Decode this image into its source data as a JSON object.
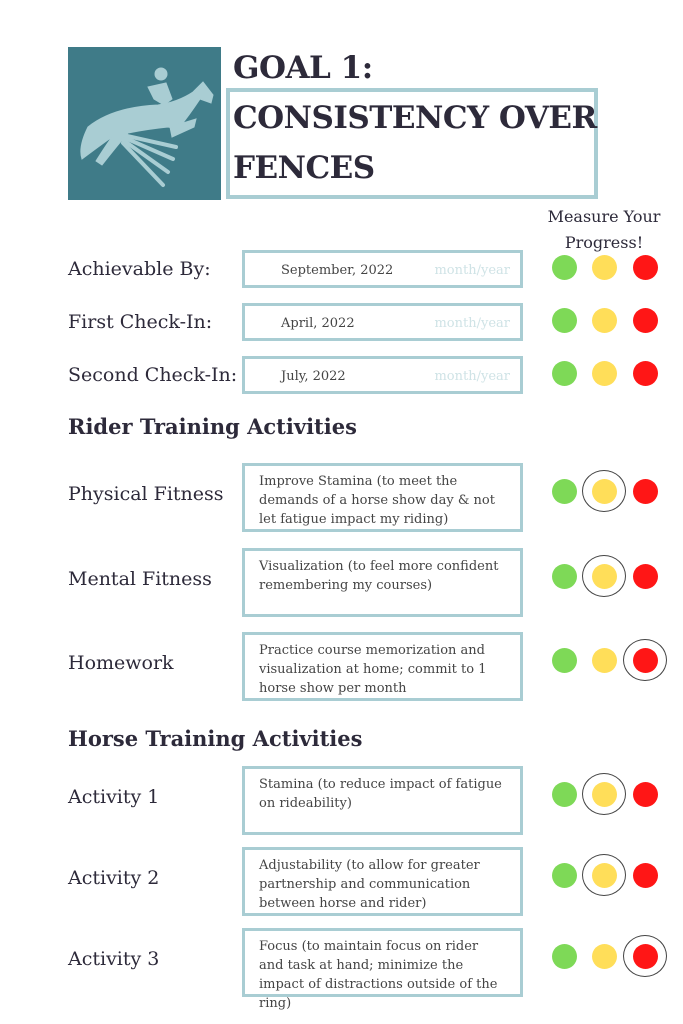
{
  "title": {
    "line1": "GOAL 1:",
    "line2": "CONSISTENCY OVER",
    "line3": "FENCES"
  },
  "measure_label": "Measure Your Progress!",
  "colors": {
    "green": "#7ed957",
    "yellow": "#ffde59",
    "red": "#ff1616",
    "border": "#a9cdd3",
    "logo_bg": "#3f7b88"
  },
  "dates": [
    {
      "label": "Achievable By:",
      "value": "September, 2022",
      "placeholder": "month/year"
    },
    {
      "label": "First Check-In:",
      "value": "April, 2022",
      "placeholder": "month/year"
    },
    {
      "label": "Second Check-In:",
      "value": "July, 2022",
      "placeholder": "month/year"
    }
  ],
  "rider": {
    "heading": "Rider Training Activities",
    "items": [
      {
        "label": "Physical Fitness",
        "text": "Improve Stamina (to meet the demands of a horse show day & not let fatigue impact my riding)",
        "selected": "yellow"
      },
      {
        "label": "Mental Fitness",
        "text": "Visualization (to feel more confident remembering my courses)",
        "selected": "yellow"
      },
      {
        "label": "Homework",
        "text": "Practice course memorization and visualization at home; commit to 1 horse show per month",
        "selected": "red"
      }
    ]
  },
  "horse": {
    "heading": "Horse Training Activities",
    "items": [
      {
        "label": "Activity 1",
        "text": "Stamina (to reduce impact of fatigue on rideability)",
        "selected": "yellow"
      },
      {
        "label": "Activity 2",
        "text": "Adjustability (to allow for greater partnership and communication between horse and rider)",
        "selected": "yellow"
      },
      {
        "label": "Activity 3",
        "text": "Focus (to maintain focus on rider and task at hand; minimize the impact of distractions outside of the ring)",
        "selected": "red"
      }
    ]
  }
}
